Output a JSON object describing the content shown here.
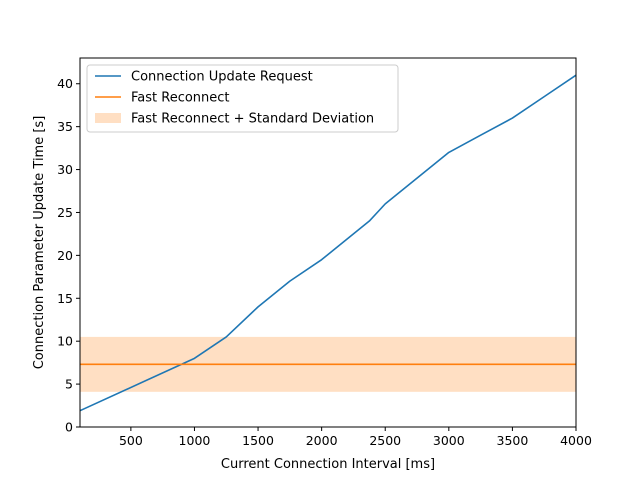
{
  "chart_data": {
    "type": "line",
    "title": "",
    "xlabel": "Current Connection Interval [ms]",
    "ylabel": "Connection Parameter Update Time [s]",
    "xlim": [
      100,
      4000
    ],
    "ylim": [
      0,
      43
    ],
    "xticks": [
      500,
      1000,
      1500,
      2000,
      2500,
      3000,
      3500,
      4000
    ],
    "yticks": [
      0,
      5,
      10,
      15,
      20,
      25,
      30,
      35,
      40
    ],
    "grid": false,
    "legend_position": "upper-left",
    "series": [
      {
        "name": "Connection Update Request",
        "kind": "line",
        "color": "#1f77b4",
        "x": [
          100,
          1000,
          1250,
          1500,
          1750,
          2000,
          2250,
          2375,
          2500,
          2750,
          3000,
          3250,
          3500,
          3750,
          4000
        ],
        "y": [
          1.9,
          8.0,
          10.5,
          14.0,
          17.0,
          19.5,
          22.5,
          24.0,
          26.0,
          29.0,
          32.0,
          34.0,
          36.0,
          38.5,
          41.0
        ]
      },
      {
        "name": "Fast Reconnect",
        "kind": "hline",
        "color": "#ff7f0e",
        "y": 7.3
      },
      {
        "name": "Fast Reconnect + Standard Deviation",
        "kind": "band",
        "color": "#ff7f0e",
        "y_low": 4.1,
        "y_high": 10.5
      }
    ]
  }
}
